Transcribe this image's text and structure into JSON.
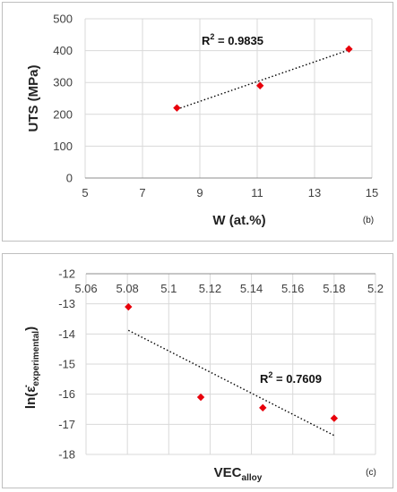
{
  "chart_data": [
    {
      "type": "scatter",
      "xlabel": "W (at.%)",
      "ylabel": "UTS (MPa)",
      "xlim": [
        5,
        15
      ],
      "ylim": [
        0,
        500
      ],
      "x_ticks": [
        "5",
        "7",
        "9",
        "11",
        "13",
        "15"
      ],
      "y_ticks": [
        "0",
        "100",
        "200",
        "300",
        "400",
        "500"
      ],
      "points": [
        {
          "x": 8.2,
          "y": 220
        },
        {
          "x": 11.1,
          "y": 290
        },
        {
          "x": 14.2,
          "y": 405
        }
      ],
      "trendline": {
        "style": "dotted",
        "x": [
          8.2,
          14.2
        ],
        "y": [
          216,
          402
        ]
      },
      "annotation": {
        "base": "R",
        "sup": "2",
        "rest": " = 0.9835"
      },
      "panel_label": "(b)",
      "grid": true,
      "marker_color": "#e8000b"
    },
    {
      "type": "scatter",
      "xlabel": {
        "base": "VEC",
        "sub": "alloy"
      },
      "ylabel": {
        "prefix": "ln(",
        "base": "ε̇",
        "sub": "experimental",
        "suffix": ")"
      },
      "xlim": [
        5.06,
        5.2
      ],
      "ylim": [
        -18,
        -12
      ],
      "x_axis_position": "top",
      "x_ticks": [
        "5.06",
        "5.08",
        "5.1",
        "5.12",
        "5.14",
        "5.16",
        "5.18",
        "5.2"
      ],
      "y_ticks": [
        "-12",
        "-13",
        "-14",
        "-15",
        "-16",
        "-17",
        "-18"
      ],
      "points": [
        {
          "x": 5.0805,
          "y": -13.1
        },
        {
          "x": 5.1155,
          "y": -16.1
        },
        {
          "x": 5.1455,
          "y": -16.45
        },
        {
          "x": 5.18,
          "y": -16.8
        }
      ],
      "trendline": {
        "style": "dotted",
        "x": [
          5.0805,
          5.18
        ],
        "y": [
          -13.88,
          -17.37
        ]
      },
      "annotation": {
        "base": "R",
        "sup": "2",
        "rest": " = 0.7609"
      },
      "panel_label": "(c)",
      "grid": true,
      "marker_color": "#e8000b"
    }
  ]
}
